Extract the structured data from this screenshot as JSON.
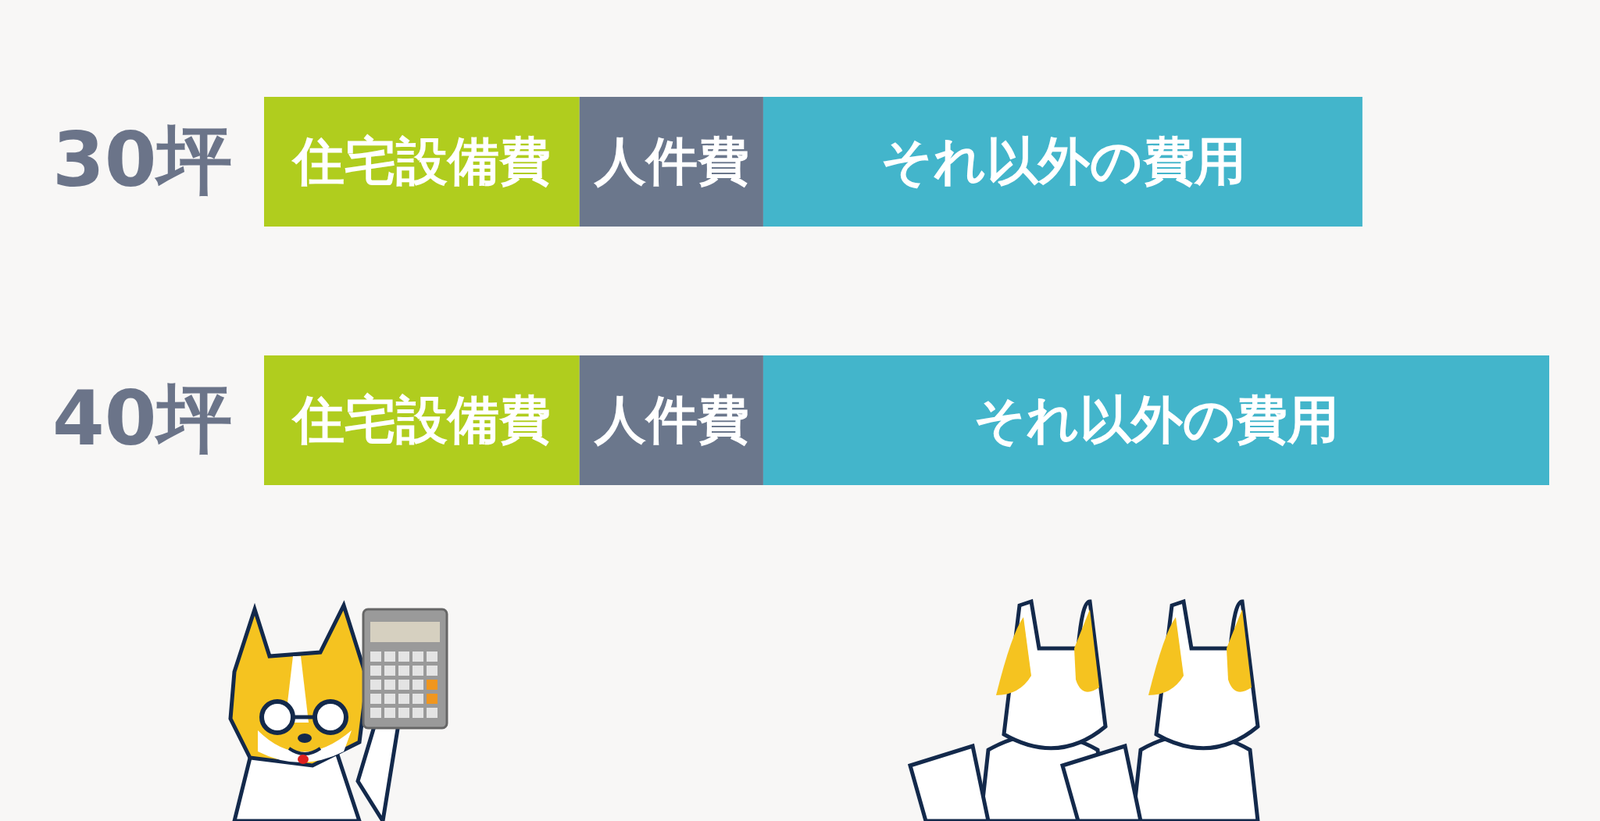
{
  "chart_data": {
    "type": "bar",
    "orientation": "horizontal",
    "stacked": true,
    "categories": [
      "30坪",
      "40坪"
    ],
    "series": [
      {
        "name": "住宅設備費",
        "color": "#b0cd1e",
        "values": [
          309,
          309
        ]
      },
      {
        "name": "人件費",
        "color": "#6b778c",
        "values": [
          180,
          180
        ]
      },
      {
        "name": "それ以外の費用",
        "color": "#43b5cb",
        "values": [
          587,
          770
        ]
      }
    ],
    "xlim": [
      0,
      1259
    ],
    "tick_labels": "y"
  }
}
